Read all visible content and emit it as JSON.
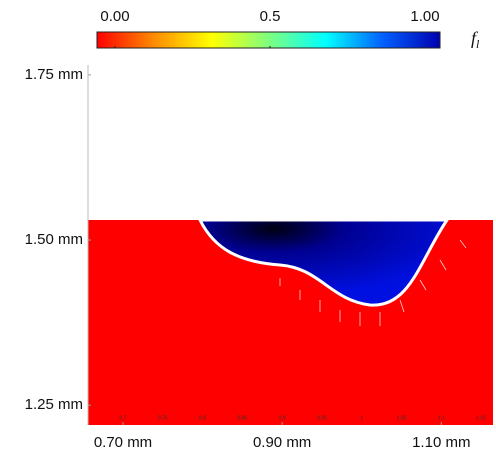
{
  "chart_data": {
    "type": "field",
    "colorbar": {
      "colormap": [
        "#ff0000",
        "#ff8c00",
        "#ffff00",
        "#7fff7f",
        "#00ffff",
        "#0060ff",
        "#0000b0"
      ],
      "lim": [
        0,
        1
      ],
      "ticks": [
        {
          "value": 0,
          "label": "0.00"
        },
        0.5,
        {
          "value": 1,
          "label": "1.00"
        }
      ],
      "label": "f",
      "label_subscript": "l"
    },
    "xlim": [
      0.656,
      1.165
    ],
    "ylim": [
      1.22,
      1.765
    ],
    "xticks": [
      {
        "value": 0.7,
        "label": "0.70 mm"
      },
      {
        "value": 0.9,
        "label": "0.90 mm"
      },
      {
        "value": 1.1,
        "label": "1.10 mm"
      }
    ],
    "yticks": [
      {
        "value": 1.75,
        "label": "1.75 mm"
      },
      {
        "value": 1.5,
        "label": "1.50 mm"
      },
      {
        "value": 1.25,
        "label": "1.25 mm"
      }
    ],
    "minor_xticks": [
      0.7,
      0.75,
      0.8,
      0.85,
      0.9,
      0.95,
      1,
      1.05,
      1.1,
      1.15
    ]
  }
}
